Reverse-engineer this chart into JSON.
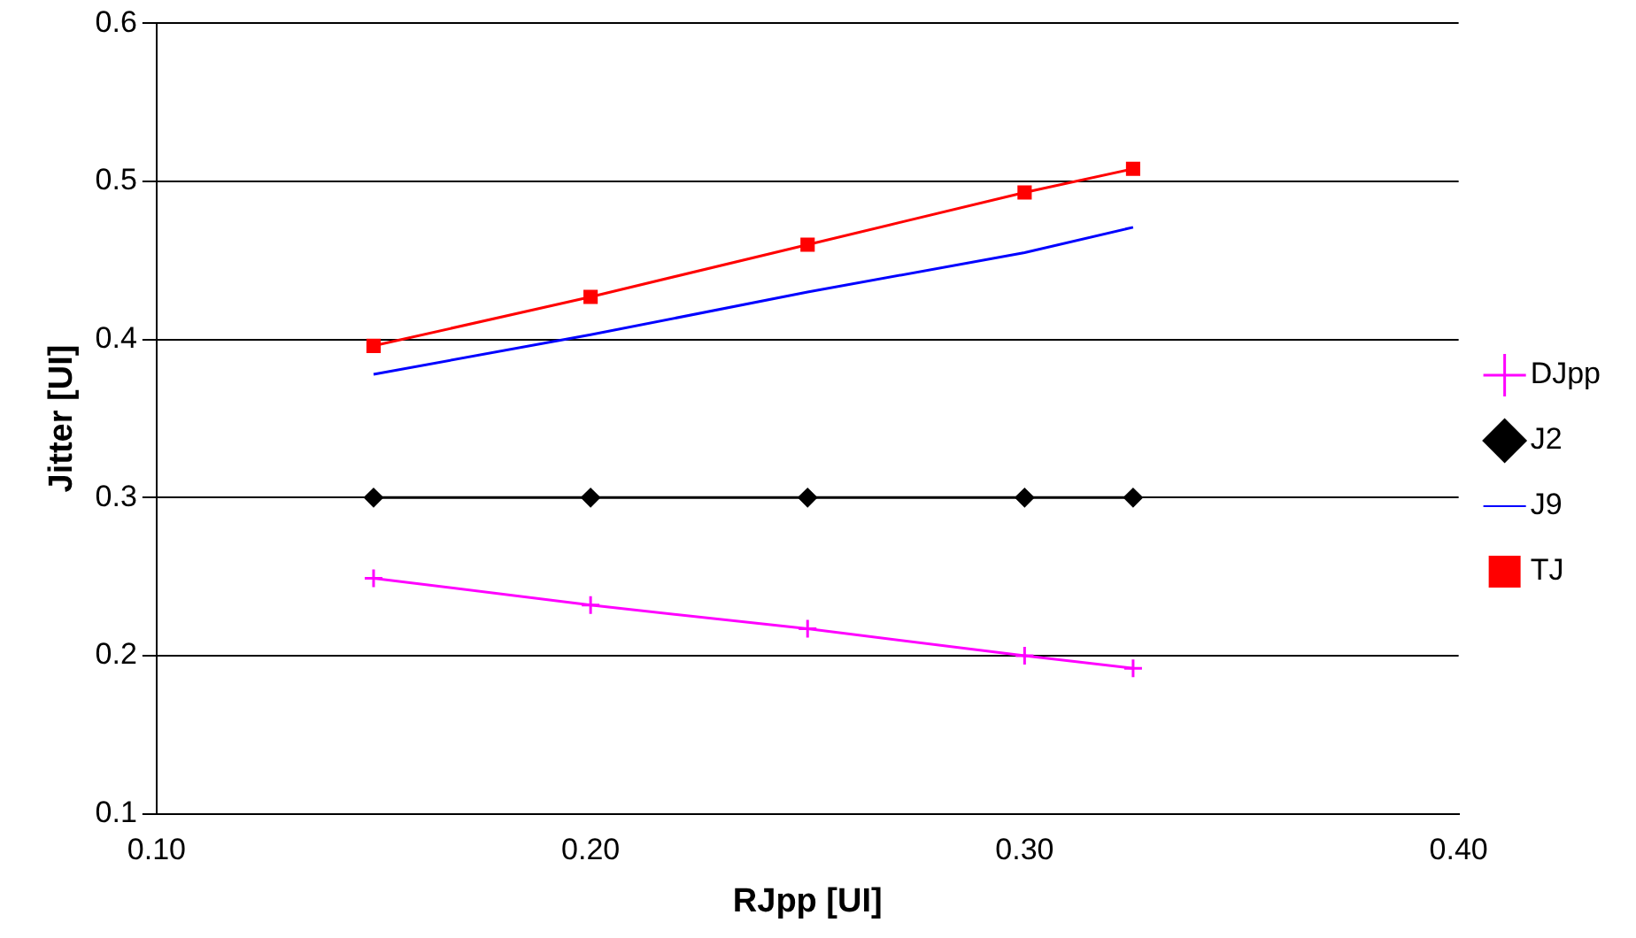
{
  "chart_data": {
    "type": "line",
    "xlabel": "RJpp [UI]",
    "ylabel": "Jitter [UI]",
    "x": [
      0.15,
      0.2,
      0.25,
      0.3,
      0.325
    ],
    "series": [
      {
        "name": "DJpp",
        "color": "#ff00ff",
        "marker": "cross",
        "values": [
          0.249,
          0.232,
          0.217,
          0.2,
          0.192
        ]
      },
      {
        "name": "J2",
        "color": "#000000",
        "marker": "diamond",
        "values": [
          0.3,
          0.3,
          0.3,
          0.3,
          0.3
        ]
      },
      {
        "name": "J9",
        "color": "#0000ff",
        "marker": "none",
        "values": [
          0.378,
          0.403,
          0.43,
          0.455,
          0.471
        ]
      },
      {
        "name": "TJ",
        "color": "#ff0000",
        "marker": "square",
        "values": [
          0.396,
          0.427,
          0.46,
          0.493,
          0.508
        ]
      }
    ],
    "xlim": [
      0.1,
      0.4
    ],
    "xticks": [
      {
        "value": 0.1,
        "label": "0.10"
      },
      {
        "value": 0.2,
        "label": "0.20"
      },
      {
        "value": 0.3,
        "label": "0.30"
      },
      {
        "value": 0.4,
        "label": "0.40"
      }
    ],
    "ylim": [
      0.1,
      0.6
    ],
    "yticks": [
      0.1,
      0.2,
      0.3,
      0.4,
      0.5,
      0.6
    ],
    "grid": "y",
    "legend": "right"
  }
}
